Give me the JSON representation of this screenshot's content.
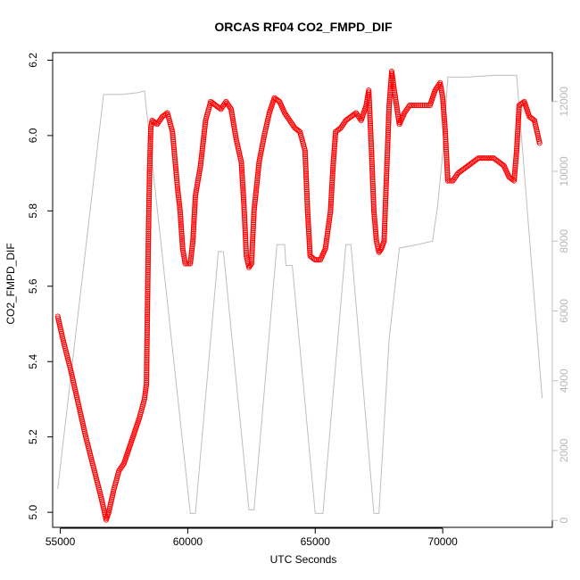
{
  "chart_data": {
    "type": "scatter",
    "title": "ORCAS RF04 CO2_FMPD_DIF",
    "xlabel": "UTC Seconds",
    "ylabel": "CO2_FMPD_DIF",
    "xlim": [
      54700,
      74300
    ],
    "ylim": [
      4.96,
      6.22
    ],
    "y2lim": [
      -200,
      13400
    ],
    "grid": false,
    "x_ticks": [
      55000,
      60000,
      65000,
      70000
    ],
    "y_ticks": [
      5.0,
      5.2,
      5.4,
      5.6,
      5.8,
      6.0,
      6.2
    ],
    "y2_ticks": [
      0,
      2000,
      4000,
      6000,
      8000,
      10000,
      12000
    ],
    "colors": {
      "points": "#ff0000",
      "altitude_line": "#bebebe",
      "axes": "#000000"
    },
    "series": [
      {
        "kind": "points",
        "axis": "left",
        "values": [
          [
            54900,
            5.52
          ],
          [
            55100,
            5.46
          ],
          [
            55400,
            5.38
          ],
          [
            55700,
            5.29
          ],
          [
            56000,
            5.2
          ],
          [
            56300,
            5.12
          ],
          [
            56600,
            5.04
          ],
          [
            56800,
            4.98
          ],
          [
            56900,
            5.0
          ],
          [
            57100,
            5.06
          ],
          [
            57300,
            5.11
          ],
          [
            57500,
            5.13
          ],
          [
            57700,
            5.17
          ],
          [
            57900,
            5.21
          ],
          [
            58100,
            5.25
          ],
          [
            58300,
            5.3
          ],
          [
            58380,
            5.34
          ],
          [
            58420,
            5.55
          ],
          [
            58460,
            5.75
          ],
          [
            58500,
            5.9
          ],
          [
            58550,
            6.02
          ],
          [
            58600,
            6.04
          ],
          [
            58800,
            6.03
          ],
          [
            59000,
            6.05
          ],
          [
            59200,
            6.06
          ],
          [
            59400,
            6.01
          ],
          [
            59600,
            5.86
          ],
          [
            59700,
            5.8
          ],
          [
            59800,
            5.7
          ],
          [
            59900,
            5.66
          ],
          [
            60100,
            5.66
          ],
          [
            60200,
            5.72
          ],
          [
            60300,
            5.84
          ],
          [
            60500,
            5.92
          ],
          [
            60700,
            6.04
          ],
          [
            60900,
            6.09
          ],
          [
            61100,
            6.08
          ],
          [
            61300,
            6.07
          ],
          [
            61500,
            6.09
          ],
          [
            61700,
            6.07
          ],
          [
            61900,
            5.99
          ],
          [
            62100,
            5.93
          ],
          [
            62200,
            5.82
          ],
          [
            62300,
            5.68
          ],
          [
            62400,
            5.65
          ],
          [
            62500,
            5.66
          ],
          [
            62600,
            5.8
          ],
          [
            62800,
            5.93
          ],
          [
            63000,
            6.0
          ],
          [
            63200,
            6.06
          ],
          [
            63400,
            6.1
          ],
          [
            63600,
            6.09
          ],
          [
            63800,
            6.06
          ],
          [
            64000,
            6.04
          ],
          [
            64200,
            6.02
          ],
          [
            64400,
            6.01
          ],
          [
            64600,
            5.96
          ],
          [
            64700,
            5.8
          ],
          [
            64800,
            5.68
          ],
          [
            65000,
            5.67
          ],
          [
            65200,
            5.67
          ],
          [
            65400,
            5.7
          ],
          [
            65600,
            5.8
          ],
          [
            65700,
            5.92
          ],
          [
            65800,
            6.01
          ],
          [
            66000,
            6.02
          ],
          [
            66200,
            6.04
          ],
          [
            66400,
            6.05
          ],
          [
            66600,
            6.06
          ],
          [
            66800,
            6.04
          ],
          [
            67000,
            6.08
          ],
          [
            67100,
            6.12
          ],
          [
            67200,
            5.97
          ],
          [
            67300,
            5.8
          ],
          [
            67400,
            5.72
          ],
          [
            67500,
            5.69
          ],
          [
            67600,
            5.7
          ],
          [
            67700,
            5.72
          ],
          [
            67800,
            5.9
          ],
          [
            67900,
            6.08
          ],
          [
            68000,
            6.17
          ],
          [
            68100,
            6.12
          ],
          [
            68300,
            6.03
          ],
          [
            68500,
            6.06
          ],
          [
            68700,
            6.08
          ],
          [
            68900,
            6.08
          ],
          [
            69200,
            6.08
          ],
          [
            69500,
            6.08
          ],
          [
            69700,
            6.12
          ],
          [
            69900,
            6.14
          ],
          [
            70000,
            6.1
          ],
          [
            70100,
            6.01
          ],
          [
            70200,
            5.88
          ],
          [
            70400,
            5.88
          ],
          [
            70600,
            5.9
          ],
          [
            70800,
            5.91
          ],
          [
            71000,
            5.92
          ],
          [
            71200,
            5.93
          ],
          [
            71400,
            5.94
          ],
          [
            71600,
            5.94
          ],
          [
            71800,
            5.94
          ],
          [
            72000,
            5.94
          ],
          [
            72200,
            5.93
          ],
          [
            72400,
            5.92
          ],
          [
            72600,
            5.89
          ],
          [
            72800,
            5.88
          ],
          [
            72900,
            5.96
          ],
          [
            73000,
            6.08
          ],
          [
            73200,
            6.09
          ],
          [
            73400,
            6.05
          ],
          [
            73600,
            6.04
          ],
          [
            73800,
            5.98
          ]
        ]
      },
      {
        "kind": "line",
        "axis": "right",
        "values": [
          [
            54900,
            900
          ],
          [
            56700,
            12200
          ],
          [
            57400,
            12200
          ],
          [
            58000,
            12250
          ],
          [
            58300,
            12300
          ],
          [
            60100,
            200
          ],
          [
            60300,
            200
          ],
          [
            61200,
            7700
          ],
          [
            61400,
            7700
          ],
          [
            62400,
            300
          ],
          [
            62600,
            300
          ],
          [
            63500,
            7900
          ],
          [
            63800,
            7900
          ],
          [
            63850,
            7300
          ],
          [
            64100,
            7300
          ],
          [
            65000,
            200
          ],
          [
            65300,
            200
          ],
          [
            66200,
            7900
          ],
          [
            66400,
            7900
          ],
          [
            67300,
            200
          ],
          [
            67500,
            200
          ],
          [
            67900,
            5200
          ],
          [
            68300,
            7800
          ],
          [
            69000,
            7900
          ],
          [
            69600,
            8000
          ],
          [
            69800,
            9000
          ],
          [
            70000,
            10500
          ],
          [
            70200,
            12700
          ],
          [
            71000,
            12700
          ],
          [
            72000,
            12750
          ],
          [
            72900,
            12750
          ],
          [
            73900,
            3500
          ]
        ]
      }
    ]
  }
}
